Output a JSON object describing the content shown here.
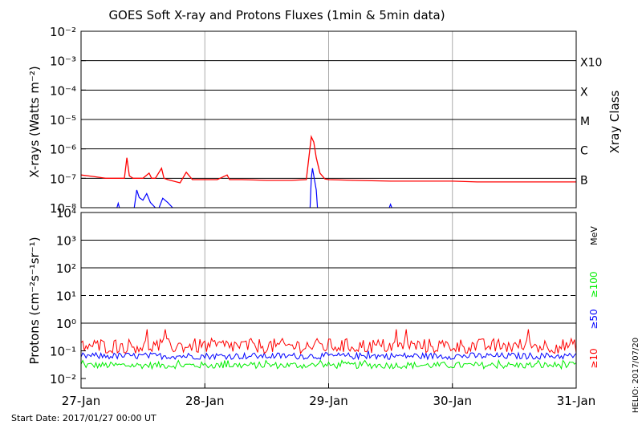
{
  "chart_data": [
    {
      "type": "line",
      "title": "GOES Soft X-ray and Protons Fluxes   (1min & 5min data)",
      "ylabel": "X-rays (Watts m⁻²)",
      "y_scale": "log",
      "ylim": [
        1e-08,
        0.01
      ],
      "y_ticks": [
        "10⁻²",
        "10⁻³",
        "10⁻⁴",
        "10⁻⁵",
        "10⁻⁶",
        "10⁻⁷",
        "10⁻⁸"
      ],
      "xlim": [
        "2017-01-27",
        "2017-01-31"
      ],
      "x_ticks": [
        "27-Jan",
        "28-Jan",
        "29-Jan",
        "30-Jan",
        "31-Jan"
      ],
      "right_axis_label": "Xray Class",
      "xray_classes": [
        {
          "label": "X10",
          "flux": 0.001
        },
        {
          "label": "X",
          "flux": 0.0001
        },
        {
          "label": "M",
          "flux": 1e-05
        },
        {
          "label": "C",
          "flux": 1e-06
        },
        {
          "label": "B",
          "flux": 1e-07
        }
      ],
      "grid": true,
      "series": [
        {
          "color": "#ff0000",
          "x": [
            27.0,
            27.1,
            27.2,
            27.35,
            27.37,
            27.39,
            27.42,
            27.5,
            27.55,
            27.57,
            27.6,
            27.65,
            27.67,
            27.7,
            27.8,
            27.85,
            27.9,
            28.0,
            28.1,
            28.18,
            28.2,
            28.3,
            28.5,
            28.7,
            28.82,
            28.86,
            28.88,
            28.9,
            28.93,
            28.97,
            29.0,
            29.2,
            29.5,
            29.8,
            30.0,
            30.2,
            30.5,
            30.8,
            31.0
          ],
          "y": [
            1.3e-07,
            1.15e-07,
            1e-07,
            1e-07,
            5e-07,
            1.2e-07,
            1e-07,
            1e-07,
            1.5e-07,
            1e-07,
            1e-07,
            2.2e-07,
            1e-07,
            9e-08,
            7e-08,
            1.6e-07,
            9e-08,
            9e-08,
            9e-08,
            1.3e-07,
            9e-08,
            9e-08,
            8.5e-08,
            8.5e-08,
            9e-08,
            2.6e-06,
            1.7e-06,
            5e-07,
            1.5e-07,
            9.5e-08,
            9e-08,
            8.5e-08,
            8e-08,
            8e-08,
            8e-08,
            7.5e-08,
            7.5e-08,
            7.5e-08,
            7.5e-08
          ]
        },
        {
          "color": "#0000ff",
          "segments": [
            {
              "x": [
                27.29,
                27.3,
                27.31
              ],
              "y": [
                1e-08,
                1.4e-08,
                1e-08
              ]
            },
            {
              "x": [
                27.43,
                27.45,
                27.47,
                27.5,
                27.53,
                27.56,
                27.6
              ],
              "y": [
                1e-08,
                4e-08,
                2.2e-08,
                1.8e-08,
                3e-08,
                1.5e-08,
                1e-08
              ]
            },
            {
              "x": [
                27.63,
                27.66,
                27.7,
                27.74
              ],
              "y": [
                1e-08,
                2.1e-08,
                1.5e-08,
                1e-08
              ]
            },
            {
              "x": [
                28.85,
                28.86,
                28.87,
                28.9,
                28.91
              ],
              "y": [
                1e-08,
                1e-07,
                2.2e-07,
                4e-08,
                1e-08
              ]
            },
            {
              "x": [
                29.49,
                29.5,
                29.51
              ],
              "y": [
                1e-08,
                1.3e-08,
                1e-08
              ]
            }
          ]
        }
      ]
    },
    {
      "type": "line",
      "ylabel": "Protons (cm⁻²s⁻¹sr⁻¹)",
      "y_scale": "log",
      "ylim": [
        0.005,
        10000
      ],
      "y_ticks": [
        "10⁴",
        "10³",
        "10²",
        "10¹",
        "10⁰",
        "10⁻¹",
        "10⁻²"
      ],
      "xlim": [
        "2017-01-27",
        "2017-01-31"
      ],
      "x_ticks": [
        "27-Jan",
        "28-Jan",
        "29-Jan",
        "30-Jan",
        "31-Jan"
      ],
      "unit_label": "MeV",
      "threshold_line": 10,
      "grid": true,
      "series": [
        {
          "name": "≥10",
          "color": "#ff0000",
          "level": 0.15,
          "min": 0.1,
          "max": 0.6
        },
        {
          "name": "≥50",
          "color": "#0000ff",
          "level": 0.065,
          "min": 0.045,
          "max": 0.1
        },
        {
          "name": "≥100",
          "color": "#00ee00",
          "level": 0.03,
          "min": 0.02,
          "max": 0.045
        }
      ]
    }
  ],
  "footer": {
    "start_date": "Start Date: 2017/01/27 00:00 UT",
    "credit": "HELIO: 2017/07/20"
  }
}
